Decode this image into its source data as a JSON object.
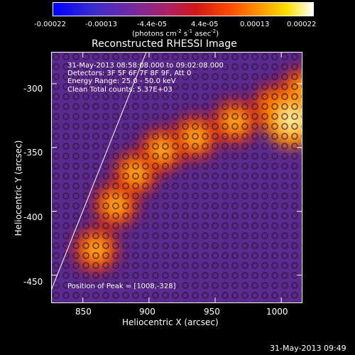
{
  "chart_data": {
    "type": "heatmap",
    "title": "Reconstructed RHESSI Image",
    "xlabel": "Heliocentric X (arcsec)",
    "ylabel": "Heliocentric Y (arcsec)",
    "xlim": [
      826,
      1016
    ],
    "ylim": [
      -472,
      -275
    ],
    "xticks": [
      850,
      900,
      950,
      1000
    ],
    "yticks": [
      -300,
      -350,
      -400,
      -450
    ],
    "colorbar": {
      "min": -0.00022,
      "max": 0.00022,
      "ticks": [
        "-0.00022",
        "-0.00013",
        "-4.4e-05",
        "4.4e-05",
        "0.00013",
        "0.00022"
      ],
      "tick_values": [
        -0.00022,
        -0.00013,
        -4.4e-05,
        4.4e-05,
        0.00013,
        0.00022
      ],
      "units_main": "(photons cm",
      "units_exp1": "-2",
      "units_mid1": " s",
      "units_exp2": "-1",
      "units_mid2": " asec",
      "units_exp3": "-2",
      "units_end": ")"
    },
    "annotations": [
      "31-May-2013 08:58:08.000 to 09:02:08.000",
      "Detectors: 3F 5F 6F 7F 8F 9F, Att 0",
      "Energy Range: 25.0 - 50.0 keV",
      "Clean     Total counts: 5.37E+03"
    ],
    "peak_label": "Position of Peak = [1008,-328]",
    "peak_position": [
      1008,
      -328
    ],
    "limb_line": [
      [
        826,
        -462
      ],
      [
        898,
        -275
      ]
    ],
    "peak_ridge": [
      [
        860,
        -430
      ],
      [
        875,
        -395
      ],
      [
        890,
        -370
      ],
      [
        910,
        -352
      ],
      [
        935,
        -342
      ],
      [
        965,
        -330
      ],
      [
        995,
        -318
      ],
      [
        1016,
        -305
      ]
    ],
    "timestamp": "31-May-2013 09:49"
  }
}
